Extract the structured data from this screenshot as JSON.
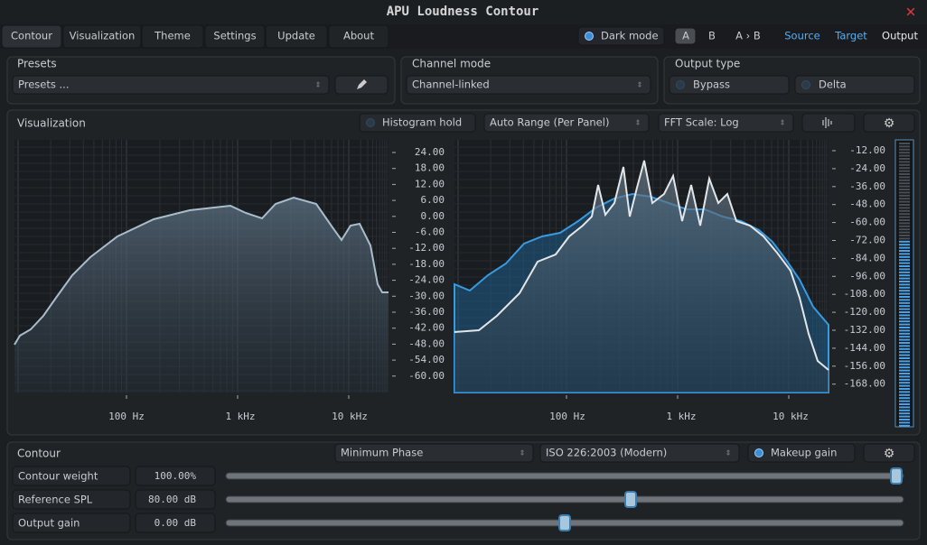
{
  "window": {
    "title": "APU Loudness Contour"
  },
  "tabs": [
    "Contour",
    "Visualization",
    "Theme",
    "Settings",
    "Update",
    "About"
  ],
  "toolbar": {
    "dark_mode": "Dark mode",
    "ab": [
      "A",
      "B",
      "A › B"
    ],
    "views": [
      "Source",
      "Target",
      "Output"
    ]
  },
  "presets": {
    "label": "Presets",
    "value": "Presets ..."
  },
  "channel_mode": {
    "label": "Channel mode",
    "value": "Channel-linked"
  },
  "output_type": {
    "label": "Output type",
    "options": [
      "Bypass",
      "Delta"
    ]
  },
  "visualization": {
    "label": "Visualization",
    "histogram_hold": "Histogram hold",
    "range": "Auto Range (Per Panel)",
    "fft_scale": "FFT Scale: Log",
    "left_axis": [
      "24.00",
      "18.00",
      "12.00",
      "6.00",
      "0.00",
      "-6.00",
      "-12.00",
      "-18.00",
      "-24.00",
      "-30.00",
      "-36.00",
      "-42.00",
      "-48.00",
      "-54.00",
      "-60.00"
    ],
    "right_axis": [
      "-12.00",
      "-24.00",
      "-36.00",
      "-48.00",
      "-60.00",
      "-72.00",
      "-84.00",
      "-96.00",
      "-108.00",
      "-120.00",
      "-132.00",
      "-144.00",
      "-156.00",
      "-168.00"
    ],
    "freq_labels": [
      "100 Hz",
      "1 kHz",
      "10 kHz"
    ]
  },
  "contour": {
    "label": "Contour",
    "phase": "Minimum Phase",
    "standard": "ISO 226:2003 (Modern)",
    "makeup": "Makeup gain",
    "params": [
      {
        "name": "Contour weight",
        "value": "100.00%"
      },
      {
        "name": "Reference SPL",
        "value": "80.00 dB"
      },
      {
        "name": "Output gain",
        "value": "0.00 dB"
      }
    ]
  }
}
